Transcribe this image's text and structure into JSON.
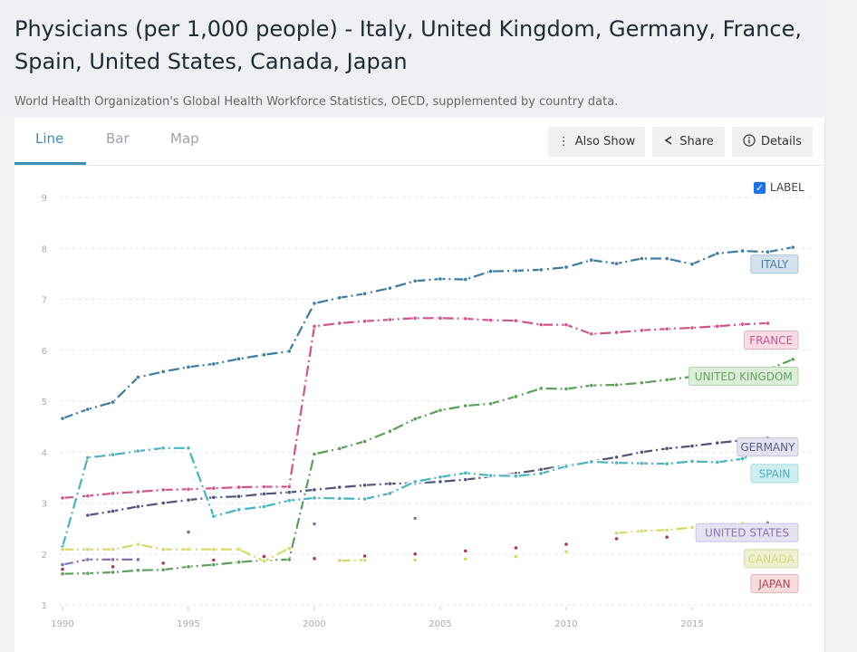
{
  "header": {
    "title": "Physicians (per 1,000 people) - Italy, United Kingdom, Germany, France, Spain, United States, Canada, Japan",
    "subtitle": "World Health Organization's Global Health Workforce Statistics, OECD, supplemented by country data."
  },
  "tabs": [
    {
      "label": "Line",
      "active": true
    },
    {
      "label": "Bar",
      "active": false
    },
    {
      "label": "Map",
      "active": false
    }
  ],
  "toolbar": {
    "also_show": {
      "label": "Also Show",
      "icon": "vertical-dots-icon"
    },
    "share": {
      "label": "Share",
      "icon": "share-icon"
    },
    "details": {
      "label": "Details",
      "icon": "info-icon"
    }
  },
  "label_toggle": {
    "label": "LABEL",
    "checked": true
  },
  "chart_data": {
    "type": "line",
    "title": "Physicians (per 1,000 people)",
    "xlabel": "",
    "ylabel": "",
    "xlim": [
      1990,
      2019
    ],
    "ylim": [
      1,
      9
    ],
    "xticks": [
      1990,
      1995,
      2000,
      2005,
      2010,
      2015
    ],
    "yticks": [
      1,
      2,
      3,
      4,
      5,
      6,
      7,
      8,
      9
    ],
    "grid": true,
    "legend": "inline-right",
    "series": [
      {
        "name": "ITALY",
        "color": "#3d7a9e",
        "label_bg": "#d5e3f0",
        "label_border": "#a9c3da",
        "label_color": "#4f7ba0",
        "x": [
          1990,
          1991,
          1992,
          1993,
          1994,
          1995,
          1996,
          1997,
          1998,
          1999,
          2000,
          2001,
          2002,
          2003,
          2004,
          2005,
          2006,
          2007,
          2008,
          2009,
          2010,
          2011,
          2012,
          2013,
          2014,
          2015,
          2016,
          2017,
          2018,
          2019
        ],
        "y": [
          4.66,
          4.84,
          4.98,
          5.47,
          5.58,
          5.67,
          5.73,
          5.83,
          5.91,
          5.98,
          6.92,
          7.03,
          7.11,
          7.22,
          7.36,
          7.4,
          7.39,
          7.55,
          7.56,
          7.58,
          7.63,
          7.77,
          7.7,
          7.8,
          7.8,
          7.69,
          7.9,
          7.95,
          7.93,
          8.02
        ]
      },
      {
        "name": "FRANCE",
        "color": "#d2538a",
        "label_bg": "#f8dbe6",
        "label_border": "#e8b3c8",
        "label_color": "#c5588a",
        "x": [
          1990,
          1991,
          1992,
          1993,
          1994,
          1995,
          1996,
          1997,
          1998,
          1999,
          2000,
          2001,
          2002,
          2003,
          2004,
          2005,
          2006,
          2007,
          2008,
          2009,
          2010,
          2011,
          2012,
          2013,
          2014,
          2015,
          2016,
          2017,
          2018
        ],
        "y": [
          3.1,
          3.14,
          3.19,
          3.22,
          3.26,
          3.27,
          3.29,
          3.31,
          3.32,
          3.32,
          6.47,
          6.53,
          6.57,
          6.6,
          6.63,
          6.63,
          6.62,
          6.59,
          6.58,
          6.5,
          6.5,
          6.32,
          6.35,
          6.39,
          6.42,
          6.44,
          6.47,
          6.51,
          6.53
        ]
      },
      {
        "name": "UNITED KINGDOM",
        "color": "#5e9e5c",
        "label_bg": "#dcefd8",
        "label_border": "#b4d6ad",
        "label_color": "#6a9e64",
        "x": [
          1990,
          1991,
          1992,
          1993,
          1994,
          1995,
          1996,
          1997,
          1998,
          1999,
          2000,
          2001,
          2002,
          2003,
          2004,
          2005,
          2006,
          2007,
          2008,
          2009,
          2010,
          2011,
          2012,
          2013,
          2014,
          2015,
          2016,
          2017,
          2018,
          2019
        ],
        "y": [
          1.61,
          1.62,
          1.64,
          1.68,
          1.69,
          1.75,
          1.79,
          1.84,
          1.88,
          1.89,
          3.96,
          4.07,
          4.21,
          4.41,
          4.65,
          4.82,
          4.91,
          4.95,
          5.09,
          5.25,
          5.24,
          5.31,
          5.32,
          5.36,
          5.42,
          5.48,
          5.51,
          5.55,
          5.62,
          5.82
        ]
      },
      {
        "name": "GERMANY",
        "color": "#4f5479",
        "label_bg": "#e3e3ef",
        "label_border": "#c4c4d8",
        "label_color": "#5a5f85",
        "x": [
          1991,
          1992,
          1993,
          1994,
          1995,
          1996,
          1997,
          1998,
          1999,
          2000,
          2001,
          2002,
          2003,
          2004,
          2005,
          2006,
          2007,
          2008,
          2009,
          2010,
          2011,
          2012,
          2013,
          2014,
          2015,
          2016,
          2017,
          2018
        ],
        "y": [
          2.76,
          2.84,
          2.93,
          3.0,
          3.06,
          3.11,
          3.13,
          3.18,
          3.21,
          3.26,
          3.31,
          3.35,
          3.38,
          3.39,
          3.42,
          3.46,
          3.52,
          3.58,
          3.66,
          3.74,
          3.82,
          3.9,
          4.0,
          4.07,
          4.12,
          4.18,
          4.23,
          4.27
        ]
      },
      {
        "name": "SPAIN",
        "color": "#4ab3c0",
        "label_bg": "#cfeef1",
        "label_border": "#a4dbe1",
        "label_color": "#4ab3c0",
        "x": [
          1990,
          1991,
          1992,
          1993,
          1994,
          1995,
          1996,
          1997,
          1998,
          1999,
          2000,
          2001,
          2002,
          2003,
          2004,
          2005,
          2006,
          2007,
          2008,
          2009,
          2010,
          2011,
          2012,
          2013,
          2014,
          2015,
          2016,
          2017,
          2018
        ],
        "y": [
          2.14,
          3.89,
          3.95,
          4.02,
          4.08,
          4.08,
          2.74,
          2.87,
          2.93,
          3.05,
          3.1,
          3.09,
          3.08,
          3.19,
          3.42,
          3.51,
          3.59,
          3.54,
          3.53,
          3.58,
          3.72,
          3.81,
          3.79,
          3.78,
          3.77,
          3.82,
          3.8,
          3.87,
          4.04
        ]
      },
      {
        "name": "UNITED STATES",
        "color": "#8a6fb6",
        "label_bg": "#e7e2f1",
        "label_border": "#cdc4e0",
        "label_color": "#8a76b0",
        "x": [
          1990,
          1991,
          1992,
          1993,
          1995,
          2000,
          2004,
          2018
        ],
        "y": [
          1.79,
          1.89,
          1.89,
          1.89,
          2.43,
          2.59,
          2.7,
          2.61
        ],
        "connected_until": 1993
      },
      {
        "name": "CANADA",
        "color": "#d9d969",
        "label_bg": "#eff0cf",
        "label_border": "#d9dba3",
        "label_color": "#d5d77a",
        "x": [
          1990,
          1991,
          1992,
          1993,
          1994,
          1995,
          1996,
          1997,
          1998,
          1999,
          2001,
          2002,
          2004,
          2006,
          2008,
          2010,
          2012,
          2013,
          2014,
          2015,
          2016,
          2017
        ],
        "y": [
          2.09,
          2.09,
          2.09,
          2.19,
          2.09,
          2.09,
          2.09,
          2.09,
          1.86,
          2.11,
          1.87,
          1.88,
          1.88,
          1.9,
          1.95,
          2.04,
          2.41,
          2.45,
          2.47,
          2.52,
          2.31,
          2.6
        ],
        "segments": [
          [
            1990,
            1999
          ],
          [
            2001,
            2002
          ],
          [
            2012,
            2017
          ]
        ]
      },
      {
        "name": "JAPAN",
        "color": "#b03a4a",
        "label_bg": "#f6dcdc",
        "label_border": "#e2b6b7",
        "label_color": "#b0464f",
        "x": [
          1990,
          1992,
          1994,
          1996,
          1998,
          2000,
          2002,
          2004,
          2006,
          2008,
          2010,
          2012,
          2014,
          2016
        ],
        "y": [
          1.7,
          1.75,
          1.82,
          1.88,
          1.95,
          1.91,
          1.96,
          2.0,
          2.06,
          2.12,
          2.19,
          2.3,
          2.33,
          2.41
        ]
      }
    ],
    "label_order": [
      "ITALY",
      "FRANCE",
      "UNITED KINGDOM",
      "GERMANY",
      "SPAIN",
      "UNITED STATES",
      "CANADA",
      "JAPAN"
    ],
    "label_values": [
      7.69,
      6.2,
      5.49,
      4.1,
      3.58,
      2.42,
      1.91,
      1.42
    ]
  }
}
